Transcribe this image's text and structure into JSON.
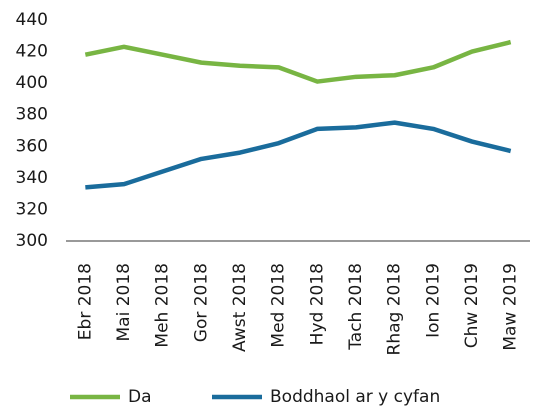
{
  "chart_data": {
    "type": "line",
    "categories": [
      "Ebr 2018",
      "Mai 2018",
      "Meh 2018",
      "Gor 2018",
      "Awst 2018",
      "Med 2018",
      "Hyd 2018",
      "Tach 2018",
      "Rhag 2018",
      "Ion 2019",
      "Chw 2019",
      "Maw 2019"
    ],
    "series": [
      {
        "name": "Da",
        "color": "#78b543",
        "values": [
          418,
          423,
          418,
          413,
          411,
          410,
          401,
          404,
          405,
          410,
          420,
          426
        ]
      },
      {
        "name": "Boddhaol ar y cyfan",
        "color": "#1a6c9c",
        "values": [
          334,
          336,
          344,
          352,
          356,
          362,
          371,
          372,
          375,
          371,
          363,
          357
        ]
      }
    ],
    "ylim": [
      300,
      440
    ],
    "yticks": [
      300,
      320,
      340,
      360,
      380,
      400,
      420,
      440
    ],
    "grid": false,
    "legend": "bottom"
  }
}
